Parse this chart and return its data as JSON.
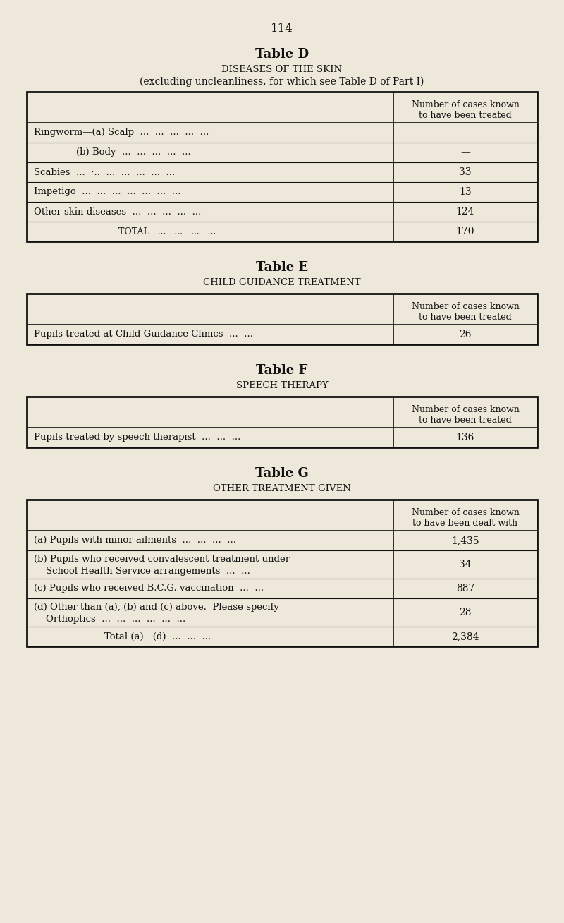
{
  "bg_color": "#EDE8DA",
  "text_color": "#111111",
  "page_number": "114",
  "fig_w": 8.0,
  "fig_h": 13.08,
  "dpi": 100,
  "table_d": {
    "title_bold": "Table D",
    "title_sc": "Diseases of the Skin",
    "subtitle": "(excluding uncleanliness, for which see Table D of Part I)",
    "col_header": "Number of cases known\nto have been treated",
    "rows": [
      {
        "label": "Ringworm—(a) Scalp  ...  ...  ...  ...  ...",
        "indent": 0,
        "value": "—"
      },
      {
        "label": "(b) Body  ...  ...  ...  ...  ...",
        "indent": 60,
        "value": "—"
      },
      {
        "label": "Scabies  ...  ·..  ...  ...  ...  ...  ...",
        "indent": 0,
        "value": "33"
      },
      {
        "label": "Impetigo  ...  ...  ...  ...  ...  ...  ...",
        "indent": 0,
        "value": "13"
      },
      {
        "label": "Other skin diseases  ...  ...  ...  ...  ...",
        "indent": 0,
        "value": "124"
      },
      {
        "label": "Total   ...   ...   ...   ...",
        "indent": 120,
        "value": "170",
        "smallcaps": true
      }
    ]
  },
  "table_e": {
    "title_bold": "Table E",
    "title_sc": "Child Guidance Treatment",
    "col_header": "Number of cases known\nto have been treated",
    "rows": [
      {
        "label": "Pupils treated at Child Guidance Clinics  ...  ...",
        "indent": 0,
        "value": "26"
      }
    ]
  },
  "table_f": {
    "title_bold": "Table F",
    "title_sc": "Speech Therapy",
    "col_header": "Number of cases known\nto have been treated",
    "rows": [
      {
        "label": "Pupils treated by speech therapist  ...  ...  ...",
        "indent": 0,
        "value": "136"
      }
    ]
  },
  "table_g": {
    "title_bold": "Table G",
    "title_sc": "Other Treatment Given",
    "col_header": "Number of cases known\nto have been dealt with",
    "rows": [
      {
        "label": "(a) Pupils with minor ailments  ...  ...  ...  ...",
        "indent": 0,
        "value": "1,435"
      },
      {
        "label": "(b) Pupils who received convalescent treatment under\n    School Health Service arrangements  ...  ...",
        "indent": 0,
        "value": "34"
      },
      {
        "label": "(c) Pupils who received B.C.G. vaccination  ...  ...",
        "indent": 0,
        "value": "887"
      },
      {
        "label": "(d) Other than (a), (b) and (c) above.  Please specify\n    Orthoptics  ...  ...  ...  ...  ...  ...",
        "indent": 0,
        "value": "28"
      },
      {
        "label": "Total (a) - (d)  ...  ...  ...",
        "indent": 100,
        "value": "2,384"
      }
    ]
  }
}
